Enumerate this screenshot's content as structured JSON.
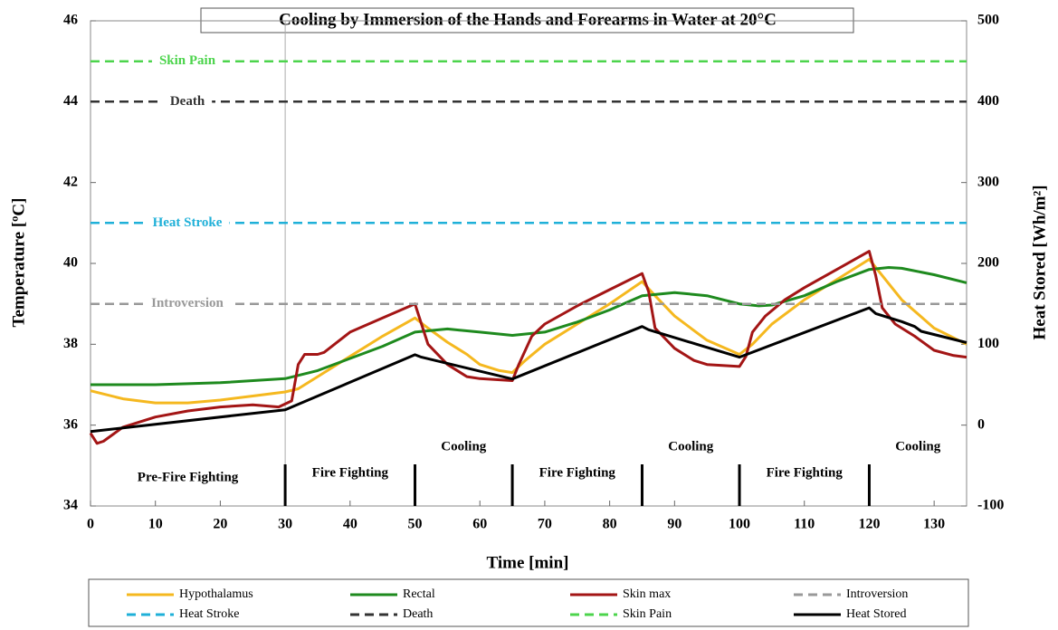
{
  "chart_data": {
    "type": "line",
    "title": "Cooling by Immersion of the Hands and Forearms in Water at 20°C",
    "xlabel": "Time [min]",
    "ylabel": "Temperature  [ºC]",
    "y2label": "Heat Stored [Wh/m²]",
    "xlim": [
      0,
      135
    ],
    "xticks": [
      0,
      10,
      20,
      30,
      40,
      50,
      60,
      70,
      80,
      90,
      100,
      110,
      120,
      130
    ],
    "ylim": [
      34,
      46
    ],
    "yticks": [
      34,
      36,
      38,
      40,
      42,
      44,
      46
    ],
    "y2lim": [
      -100,
      500
    ],
    "y2ticks": [
      -100,
      0,
      100,
      200,
      300,
      400,
      500
    ],
    "phase_boundaries": [
      30,
      50,
      65,
      85,
      100,
      120
    ],
    "phases": [
      "Pre-Fire Fighting",
      "Fire Fighting",
      "Cooling",
      "Fire Fighting",
      "Cooling",
      "Fire Fighting",
      "Cooling"
    ],
    "legend": "bottom",
    "series": [
      {
        "name": "Hypothalamus",
        "color": "#f5b81f",
        "line_style": "solid",
        "x": [
          0,
          5,
          10,
          15,
          20,
          25,
          30,
          32,
          35,
          40,
          45,
          50,
          52,
          55,
          58,
          60,
          63,
          65,
          67,
          70,
          75,
          80,
          85,
          87,
          90,
          95,
          100,
          102,
          105,
          110,
          115,
          120,
          122,
          125,
          130,
          135
        ],
        "values": [
          36.85,
          36.65,
          36.55,
          36.55,
          36.62,
          36.72,
          36.82,
          36.9,
          37.2,
          37.7,
          38.2,
          38.65,
          38.4,
          38.05,
          37.75,
          37.5,
          37.35,
          37.3,
          37.6,
          38.0,
          38.5,
          39.0,
          39.55,
          39.2,
          38.7,
          38.1,
          37.75,
          38.0,
          38.5,
          39.1,
          39.6,
          40.1,
          39.7,
          39.1,
          38.4,
          38.0
        ]
      },
      {
        "name": "Rectal",
        "color": "#1e8a1e",
        "line_style": "solid",
        "x": [
          0,
          10,
          20,
          30,
          35,
          40,
          45,
          50,
          55,
          60,
          65,
          70,
          75,
          80,
          85,
          90,
          95,
          100,
          103,
          105,
          110,
          115,
          120,
          123,
          125,
          130,
          135
        ],
        "values": [
          37.0,
          37.0,
          37.05,
          37.15,
          37.35,
          37.65,
          37.95,
          38.3,
          38.38,
          38.3,
          38.22,
          38.3,
          38.55,
          38.85,
          39.2,
          39.28,
          39.2,
          39.0,
          38.95,
          38.97,
          39.2,
          39.55,
          39.85,
          39.9,
          39.88,
          39.72,
          39.52
        ]
      },
      {
        "name": "Skin max",
        "color": "#a31515",
        "line_style": "solid",
        "x": [
          0,
          1,
          2,
          5,
          10,
          15,
          20,
          25,
          29,
          31,
          32,
          33,
          35,
          36,
          38,
          40,
          45,
          50,
          51,
          52,
          55,
          58,
          60,
          65,
          66,
          68,
          70,
          75,
          80,
          85,
          86,
          87,
          90,
          93,
          95,
          100,
          101,
          102,
          104,
          107,
          110,
          115,
          120,
          121,
          122,
          124,
          127,
          130,
          133,
          135
        ],
        "values": [
          35.8,
          35.55,
          35.6,
          35.95,
          36.2,
          36.35,
          36.45,
          36.5,
          36.45,
          36.6,
          37.5,
          37.75,
          37.75,
          37.8,
          38.05,
          38.3,
          38.65,
          39.0,
          38.5,
          38.0,
          37.5,
          37.2,
          37.15,
          37.1,
          37.5,
          38.2,
          38.5,
          38.95,
          39.35,
          39.75,
          39.3,
          38.4,
          37.9,
          37.6,
          37.5,
          37.45,
          37.7,
          38.3,
          38.7,
          39.1,
          39.4,
          39.85,
          40.3,
          39.7,
          38.9,
          38.5,
          38.2,
          37.85,
          37.72,
          37.68
        ]
      },
      {
        "name": "Introversion",
        "color": "#999999",
        "line_style": "dashed",
        "x": [
          0,
          135
        ],
        "values": [
          39,
          39
        ]
      },
      {
        "name": "Heat Stroke",
        "color": "#1fb0d8",
        "line_style": "dashed",
        "x": [
          0,
          135
        ],
        "values": [
          41,
          41
        ]
      },
      {
        "name": "Death",
        "color": "#333333",
        "line_style": "dashed",
        "x": [
          0,
          135
        ],
        "values": [
          44,
          44
        ]
      },
      {
        "name": "Skin Pain",
        "color": "#4cd44c",
        "line_style": "dashed",
        "x": [
          0,
          135
        ],
        "values": [
          45,
          45
        ]
      },
      {
        "name": "Heat Stored",
        "color": "#000000",
        "line_style": "solid",
        "axis": "y2",
        "x": [
          0,
          30,
          50,
          51,
          65,
          85,
          86,
          100,
          120,
          121,
          125,
          127,
          128,
          135
        ],
        "values": [
          -8,
          19,
          87,
          84,
          57,
          122,
          118,
          84,
          145,
          138,
          128,
          122,
          116,
          102
        ]
      }
    ]
  }
}
